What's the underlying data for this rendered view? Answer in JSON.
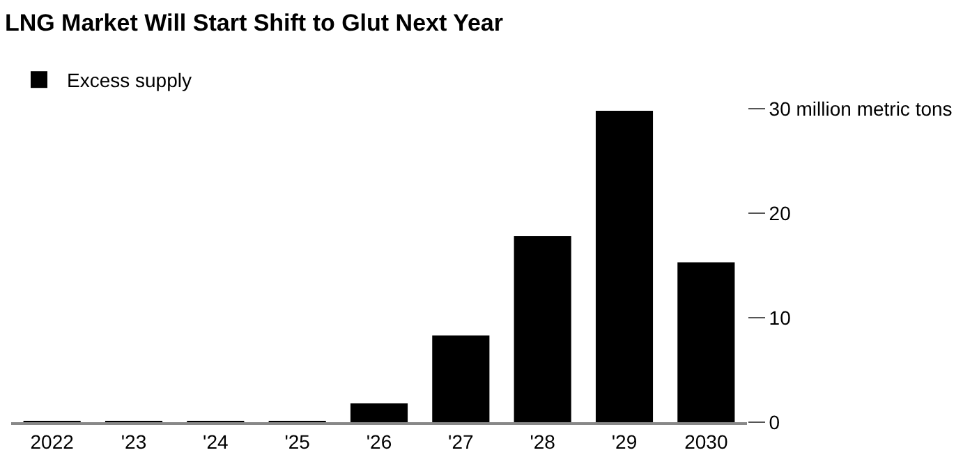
{
  "chart_data": {
    "type": "bar",
    "title": "LNG Market Will Start Shift to Glut Next Year",
    "categories": [
      "2022",
      "'23",
      "'24",
      "'25",
      "'26",
      "'27",
      "'28",
      "'29",
      "2030"
    ],
    "series": [
      {
        "name": "Excess supply",
        "color": "#000000",
        "values": [
          0.1,
          0.1,
          0.1,
          0.1,
          1.8,
          8.3,
          17.8,
          29.8,
          15.3
        ]
      }
    ],
    "ylim": [
      0,
      30
    ],
    "yticks": [
      0,
      10,
      20,
      {
        "value": 30,
        "label": "30 million metric tons"
      }
    ],
    "grid": false,
    "legend": "top left"
  }
}
